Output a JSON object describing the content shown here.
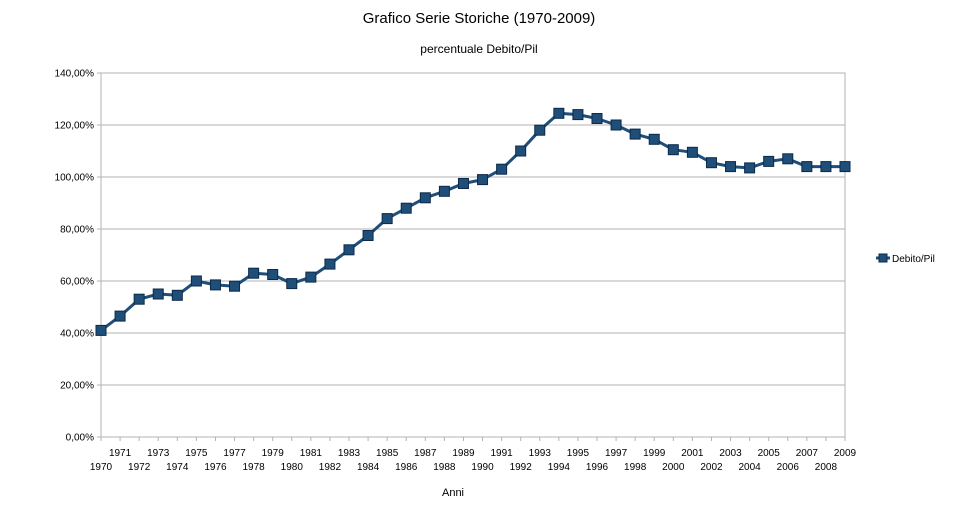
{
  "chart_data": {
    "type": "line",
    "title": "Grafico Serie Storiche (1970-2009)",
    "subtitle": "percentuale Debito/Pil",
    "xlabel": "Anni",
    "ylabel": "",
    "ylim": [
      0,
      140
    ],
    "yticks": [
      "0,00%",
      "20,00%",
      "40,00%",
      "60,00%",
      "80,00%",
      "100,00%",
      "120,00%",
      "140,00%"
    ],
    "categories": [
      "1970",
      "1971",
      "1972",
      "1973",
      "1974",
      "1975",
      "1976",
      "1977",
      "1978",
      "1979",
      "1980",
      "1981",
      "1982",
      "1983",
      "1984",
      "1985",
      "1986",
      "1987",
      "1988",
      "1989",
      "1990",
      "1991",
      "1992",
      "1993",
      "1994",
      "1995",
      "1996",
      "1997",
      "1998",
      "1999",
      "2000",
      "2001",
      "2002",
      "2003",
      "2004",
      "2005",
      "2006",
      "2007",
      "2008",
      "2009"
    ],
    "series": [
      {
        "name": "Debito/Pil",
        "color": "#1f4e79",
        "marker": "square",
        "values": [
          41.0,
          46.5,
          53.0,
          55.0,
          54.5,
          60.0,
          58.5,
          58.0,
          63.0,
          62.5,
          59.0,
          61.5,
          66.5,
          72.0,
          77.5,
          84.0,
          88.0,
          92.0,
          94.5,
          97.5,
          99.0,
          103.0,
          110.0,
          118.0,
          124.5,
          124.0,
          122.5,
          120.0,
          116.5,
          114.5,
          110.5,
          109.5,
          105.5,
          104.0,
          103.5,
          106.0,
          107.0,
          104.0,
          104.0,
          104.0
        ]
      }
    ],
    "grid": true,
    "legend_position": "right"
  }
}
